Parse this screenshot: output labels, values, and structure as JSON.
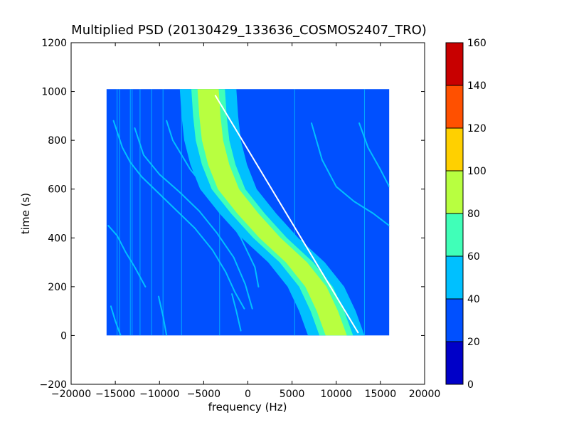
{
  "chart_data": {
    "type": "heatmap",
    "title": "Multiplied PSD (20130429_133636_COSMOS2407_TRO)",
    "xlabel": "frequency (Hz)",
    "ylabel": "time (s)",
    "xlim": [
      -20000,
      20000
    ],
    "ylim": [
      -200,
      1200
    ],
    "x_ticks": [
      -20000,
      -15000,
      -10000,
      -5000,
      0,
      5000,
      10000,
      15000,
      20000
    ],
    "x_tick_labels": [
      "−20000",
      "−15000",
      "−10000",
      "−5000",
      "0",
      "5000",
      "10000",
      "15000",
      "20000"
    ],
    "y_ticks": [
      -200,
      0,
      200,
      400,
      600,
      800,
      1000,
      1200
    ],
    "y_tick_labels": [
      "−200",
      "0",
      "200",
      "400",
      "600",
      "800",
      "1000",
      "1200"
    ],
    "data_extent": {
      "x": [
        -16000,
        16000
      ],
      "y": [
        0,
        1010
      ]
    },
    "background_level": 30,
    "colorbar": {
      "boundaries": [
        0,
        20,
        40,
        60,
        80,
        100,
        120,
        140,
        160
      ],
      "tick_labels": [
        "0",
        "20",
        "40",
        "60",
        "80",
        "100",
        "120",
        "140",
        "160"
      ],
      "colors": [
        "#0000c8",
        "#0050ff",
        "#00c0ff",
        "#40ffb8",
        "#b8ff40",
        "#ffd000",
        "#ff5000",
        "#c80000"
      ]
    },
    "main_band": {
      "center": [
        {
          "t": 0,
          "f": 10000
        },
        {
          "t": 100,
          "f": 9000
        },
        {
          "t": 200,
          "f": 7700
        },
        {
          "t": 300,
          "f": 5500
        },
        {
          "t": 400,
          "f": 2500
        },
        {
          "t": 500,
          "f": 0
        },
        {
          "t": 600,
          "f": -2200
        },
        {
          "t": 700,
          "f": -3300
        },
        {
          "t": 800,
          "f": -4000
        },
        {
          "t": 900,
          "f": -4300
        },
        {
          "t": 1010,
          "f": -4500
        }
      ],
      "half_width_outer": 3200,
      "half_width_middle": 1900,
      "half_width_inner": 1200,
      "levels": [
        50,
        70,
        90
      ]
    },
    "diagonal_line": {
      "from": {
        "f": -3700,
        "t": 985
      },
      "to": {
        "f": 12500,
        "t": 10
      }
    },
    "vertical_lines": [
      -14800,
      -14500,
      -13300,
      -13100,
      -12200,
      -10900,
      -9600,
      -7500,
      -3200,
      5300,
      13200
    ],
    "streaks": [
      [
        {
          "f": -15200,
          "t": 880
        },
        {
          "f": -14200,
          "t": 770
        },
        {
          "f": -13300,
          "t": 710
        },
        {
          "f": -12000,
          "t": 650
        },
        {
          "f": -10000,
          "t": 580
        },
        {
          "f": -8000,
          "t": 510
        },
        {
          "f": -6000,
          "t": 440
        },
        {
          "f": -4000,
          "t": 350
        },
        {
          "f": -2500,
          "t": 260
        },
        {
          "f": -1500,
          "t": 180
        },
        {
          "f": -400,
          "t": 110
        }
      ],
      [
        {
          "f": -12800,
          "t": 850
        },
        {
          "f": -11800,
          "t": 740
        },
        {
          "f": -10000,
          "t": 660
        },
        {
          "f": -7800,
          "t": 590
        },
        {
          "f": -5500,
          "t": 510
        },
        {
          "f": -3500,
          "t": 420
        },
        {
          "f": -1600,
          "t": 320
        },
        {
          "f": -300,
          "t": 210
        },
        {
          "f": 500,
          "t": 110
        }
      ],
      [
        {
          "f": -9200,
          "t": 880
        },
        {
          "f": -8500,
          "t": 800
        },
        {
          "f": -6500,
          "t": 680
        },
        {
          "f": -4500,
          "t": 590
        },
        {
          "f": -2500,
          "t": 500
        },
        {
          "f": -800,
          "t": 400
        },
        {
          "f": 800,
          "t": 280
        },
        {
          "f": 1200,
          "t": 200
        }
      ],
      [
        {
          "f": -15800,
          "t": 450
        },
        {
          "f": -14800,
          "t": 410
        },
        {
          "f": -13800,
          "t": 340
        },
        {
          "f": -12800,
          "t": 280
        },
        {
          "f": -11600,
          "t": 200
        }
      ],
      [
        {
          "f": 7200,
          "t": 870
        },
        {
          "f": 8400,
          "t": 720
        },
        {
          "f": 10000,
          "t": 610
        },
        {
          "f": 12000,
          "t": 550
        },
        {
          "f": 14200,
          "t": 500
        },
        {
          "f": 16000,
          "t": 450
        }
      ],
      [
        {
          "f": 12600,
          "t": 870
        },
        {
          "f": 13600,
          "t": 770
        },
        {
          "f": 15000,
          "t": 680
        },
        {
          "f": 16000,
          "t": 610
        }
      ],
      [
        {
          "f": 6000,
          "t": 390
        },
        {
          "f": 7500,
          "t": 330
        },
        {
          "f": 9000,
          "t": 250
        },
        {
          "f": 10500,
          "t": 140
        },
        {
          "f": 11500,
          "t": 40
        },
        {
          "f": 12000,
          "t": 0
        }
      ],
      [
        {
          "f": -15500,
          "t": 120
        },
        {
          "f": -15000,
          "t": 60
        },
        {
          "f": -14400,
          "t": 0
        }
      ],
      [
        {
          "f": -10100,
          "t": 160
        },
        {
          "f": -9600,
          "t": 80
        },
        {
          "f": -9200,
          "t": 0
        }
      ],
      [
        {
          "f": -1800,
          "t": 170
        },
        {
          "f": -1300,
          "t": 100
        },
        {
          "f": -800,
          "t": 20
        }
      ]
    ]
  }
}
